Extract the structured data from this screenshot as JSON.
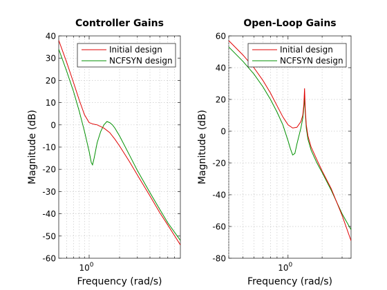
{
  "colors": {
    "series": [
      "#e00000",
      "#009000"
    ]
  },
  "chart_data": [
    {
      "type": "line",
      "title": "Controller Gains",
      "xlabel": "Frequency  (rad/s)",
      "ylabel": "Magnitude (dB)",
      "xscale": "log",
      "xlim": [
        0.5,
        8
      ],
      "ylim": [
        -60,
        40
      ],
      "yticks": [
        40,
        30,
        20,
        10,
        0,
        -10,
        -20,
        -30,
        -40,
        -50,
        -60
      ],
      "xticks": [
        {
          "value": 1,
          "base": "10",
          "exp": "0"
        }
      ],
      "grid": true,
      "legend": "top-right",
      "series": [
        {
          "name": "Initial design",
          "x": [
            0.5,
            0.6,
            0.7,
            0.8,
            0.9,
            1.0,
            1.1,
            1.2,
            1.4,
            1.6,
            1.8,
            2.0,
            2.5,
            3.0,
            4.0,
            5.0,
            6.0,
            8.0
          ],
          "y": [
            38,
            28,
            19,
            11,
            4.5,
            1,
            0.3,
            0,
            -1.5,
            -3.5,
            -6.5,
            -9.5,
            -16.5,
            -22.5,
            -32,
            -39.5,
            -45,
            -54
          ]
        },
        {
          "name": "NCFSYN design",
          "x": [
            0.5,
            0.6,
            0.7,
            0.8,
            0.9,
            1.0,
            1.05,
            1.08,
            1.12,
            1.2,
            1.3,
            1.4,
            1.5,
            1.6,
            1.7,
            1.8,
            2.0,
            2.5,
            3.0,
            4.0,
            5.0,
            6.0,
            8.0
          ],
          "y": [
            34,
            24,
            15,
            6,
            -3,
            -12,
            -17,
            -18,
            -15,
            -8,
            -3,
            0,
            1.5,
            1,
            0,
            -1.5,
            -5,
            -13.5,
            -20.5,
            -30.5,
            -38,
            -44,
            -52
          ]
        }
      ]
    },
    {
      "type": "line",
      "title": "Open-Loop Gains",
      "xlabel": "Frequency  (rad/s)",
      "ylabel": "Magnitude (dB)",
      "xscale": "log",
      "xlim": [
        0.3,
        3.6
      ],
      "ylim": [
        -80,
        60
      ],
      "yticks": [
        60,
        40,
        20,
        0,
        -20,
        -40,
        -60,
        -80
      ],
      "xticks": [
        {
          "value": 1,
          "base": "10",
          "exp": "0"
        }
      ],
      "grid": true,
      "legend": "top-right",
      "series": [
        {
          "name": "Initial design",
          "x": [
            0.3,
            0.4,
            0.5,
            0.6,
            0.7,
            0.8,
            0.9,
            1.0,
            1.1,
            1.2,
            1.3,
            1.35,
            1.38,
            1.4,
            1.42,
            1.45,
            1.5,
            1.6,
            1.8,
            2.0,
            2.4,
            3.0,
            3.6
          ],
          "y": [
            57,
            48,
            40,
            32,
            24,
            16,
            9,
            4,
            2,
            2.5,
            6,
            10,
            17,
            27,
            14,
            4,
            -3,
            -10,
            -18,
            -25,
            -36,
            -53,
            -69
          ]
        },
        {
          "name": "NCFSYN design",
          "x": [
            0.3,
            0.4,
            0.5,
            0.6,
            0.7,
            0.8,
            0.9,
            1.0,
            1.05,
            1.1,
            1.15,
            1.2,
            1.3,
            1.35,
            1.38,
            1.4,
            1.42,
            1.45,
            1.5,
            1.6,
            1.8,
            2.0,
            2.4,
            3.0,
            3.6
          ],
          "y": [
            53,
            44,
            36,
            28,
            20,
            12,
            4,
            -6,
            -11,
            -15,
            -14,
            -8,
            2,
            8,
            15,
            21,
            12,
            2,
            -5,
            -12,
            -20,
            -26,
            -37,
            -52,
            -62
          ]
        }
      ]
    }
  ]
}
